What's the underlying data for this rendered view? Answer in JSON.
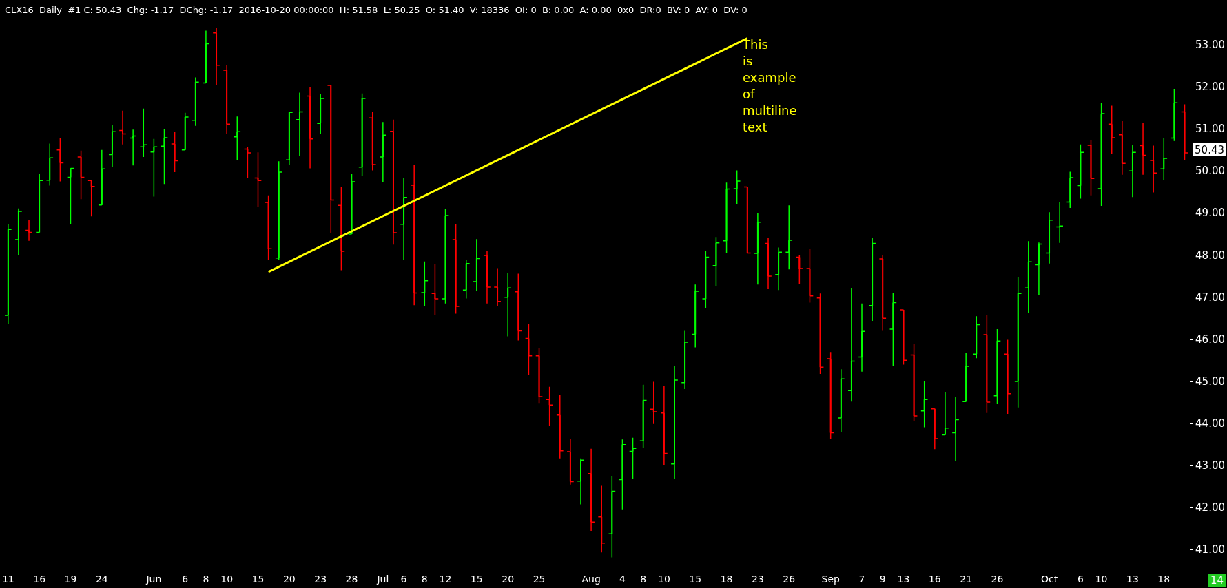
{
  "chart_data": {
    "type": "candlestick",
    "title": "CLX16  Daily  #1 C: 50.43  Chg: -1.17  DChg: -1.17  2016-10-20 00:00:00  H: 51.58  L: 50.25  O: 51.40  V: 18336  OI: 0  B: 0.00  A: 0.00  0x0  DR:0  BV: 0  AV: 0  DV: 0",
    "categories": [
      "11",
      null,
      null,
      "16",
      null,
      null,
      "19",
      null,
      null,
      "24",
      null,
      null,
      null,
      null,
      "Jun",
      null,
      null,
      "6",
      null,
      "8",
      null,
      "10",
      null,
      null,
      "15",
      null,
      null,
      "20",
      null,
      null,
      "23",
      null,
      null,
      "28",
      null,
      null,
      "Jul",
      null,
      "6",
      null,
      "8",
      null,
      "12",
      null,
      null,
      "15",
      null,
      null,
      "20",
      null,
      null,
      "25",
      null,
      null,
      null,
      null,
      "Aug",
      null,
      null,
      "4",
      null,
      "8",
      null,
      "10",
      null,
      null,
      "15",
      null,
      null,
      "18",
      null,
      null,
      "23",
      null,
      null,
      "26",
      null,
      null,
      null,
      "Sep",
      null,
      null,
      "7",
      null,
      "9",
      null,
      "13",
      null,
      null,
      "16",
      null,
      null,
      "21",
      null,
      null,
      "26",
      null,
      null,
      null,
      null,
      "Oct",
      null,
      null,
      "6",
      null,
      "10",
      null,
      null,
      "13",
      null,
      null,
      "18",
      null,
      null
    ],
    "ohlc": [
      [
        46.57,
        48.73,
        46.36,
        48.61
      ],
      [
        48.37,
        49.11,
        48.01,
        49.04
      ],
      [
        48.59,
        48.83,
        48.34,
        48.54
      ],
      [
        48.54,
        49.94,
        48.54,
        49.77
      ],
      [
        49.78,
        50.65,
        49.65,
        50.31
      ],
      [
        50.5,
        50.79,
        49.75,
        50.19
      ],
      [
        49.85,
        50.06,
        48.73,
        50.06
      ],
      [
        50.33,
        50.48,
        49.33,
        49.85
      ],
      [
        49.77,
        49.77,
        48.92,
        49.63
      ],
      [
        49.19,
        50.5,
        49.19,
        50.05
      ],
      [
        50.39,
        51.09,
        50.09,
        50.93
      ],
      [
        50.96,
        51.43,
        50.63,
        50.88
      ],
      [
        50.78,
        50.98,
        50.13,
        50.83
      ],
      [
        50.57,
        51.48,
        50.33,
        50.62
      ],
      [
        50.45,
        50.76,
        49.39,
        50.57
      ],
      [
        50.59,
        51.0,
        49.69,
        50.79
      ],
      [
        50.64,
        50.93,
        49.97,
        50.24
      ],
      [
        50.5,
        51.38,
        50.5,
        51.28
      ],
      [
        51.2,
        52.22,
        51.07,
        52.11
      ],
      [
        52.09,
        53.33,
        52.09,
        53.02
      ],
      [
        53.28,
        53.4,
        52.05,
        52.51
      ],
      [
        52.39,
        52.51,
        50.87,
        51.11
      ],
      [
        50.81,
        51.29,
        50.25,
        50.93
      ],
      [
        50.52,
        50.56,
        49.83,
        50.43
      ],
      [
        49.83,
        50.44,
        49.14,
        49.77
      ],
      [
        49.25,
        49.42,
        47.89,
        48.15
      ],
      [
        47.93,
        50.23,
        47.89,
        49.97
      ],
      [
        50.26,
        51.41,
        50.15,
        51.39
      ],
      [
        51.22,
        51.86,
        50.36,
        51.4
      ],
      [
        51.78,
        51.99,
        50.06,
        50.76
      ],
      [
        51.13,
        51.83,
        50.88,
        51.72
      ],
      [
        52.03,
        52.03,
        48.53,
        49.31
      ],
      [
        49.18,
        49.62,
        47.64,
        48.09
      ],
      [
        48.5,
        49.94,
        48.5,
        49.74
      ],
      [
        50.09,
        51.84,
        49.88,
        51.72
      ],
      [
        51.26,
        51.41,
        50.01,
        50.15
      ],
      [
        50.33,
        51.16,
        49.74,
        50.85
      ],
      [
        50.94,
        51.22,
        48.25,
        48.53
      ],
      [
        48.73,
        49.83,
        47.88,
        49.37
      ],
      [
        49.66,
        50.15,
        46.81,
        47.1
      ],
      [
        47.11,
        47.85,
        46.78,
        47.39
      ],
      [
        47.09,
        47.78,
        46.58,
        46.96
      ],
      [
        46.96,
        49.09,
        46.85,
        48.94
      ],
      [
        48.37,
        48.73,
        46.61,
        46.78
      ],
      [
        47.17,
        47.88,
        46.97,
        47.8
      ],
      [
        47.37,
        48.38,
        47.14,
        47.92
      ],
      [
        47.99,
        48.1,
        46.85,
        47.24
      ],
      [
        47.24,
        47.69,
        46.78,
        46.9
      ],
      [
        47.0,
        47.57,
        46.07,
        47.22
      ],
      [
        47.13,
        47.56,
        45.97,
        46.2
      ],
      [
        46.02,
        46.36,
        45.16,
        45.61
      ],
      [
        45.61,
        45.8,
        44.47,
        44.64
      ],
      [
        44.57,
        44.87,
        43.95,
        44.44
      ],
      [
        44.2,
        44.69,
        43.17,
        43.35
      ],
      [
        43.33,
        43.63,
        42.55,
        42.62
      ],
      [
        42.63,
        43.17,
        42.08,
        43.13
      ],
      [
        42.81,
        43.4,
        41.45,
        41.66
      ],
      [
        41.78,
        42.52,
        40.94,
        41.16
      ],
      [
        41.38,
        42.76,
        40.82,
        42.39
      ],
      [
        42.67,
        43.62,
        41.96,
        43.5
      ],
      [
        43.34,
        43.66,
        42.68,
        43.41
      ],
      [
        43.59,
        44.92,
        43.42,
        44.55
      ],
      [
        44.34,
        44.99,
        43.99,
        44.28
      ],
      [
        44.25,
        44.89,
        43.02,
        43.29
      ],
      [
        43.04,
        45.37,
        42.68,
        45.03
      ],
      [
        44.97,
        46.2,
        44.82,
        45.93
      ],
      [
        46.12,
        47.3,
        45.81,
        47.14
      ],
      [
        46.96,
        48.09,
        46.74,
        47.95
      ],
      [
        47.75,
        48.43,
        47.27,
        48.29
      ],
      [
        48.34,
        49.72,
        48.04,
        49.57
      ],
      [
        49.58,
        50.01,
        49.21,
        49.76
      ],
      [
        49.62,
        49.62,
        48.05,
        48.05
      ],
      [
        48.04,
        49.0,
        47.3,
        48.78
      ],
      [
        48.28,
        48.41,
        47.19,
        47.5
      ],
      [
        47.54,
        48.18,
        47.17,
        48.07
      ],
      [
        48.07,
        49.18,
        47.66,
        48.35
      ],
      [
        47.95,
        47.99,
        47.32,
        47.68
      ],
      [
        47.68,
        48.14,
        46.87,
        47.03
      ],
      [
        46.98,
        47.09,
        45.18,
        45.34
      ],
      [
        45.54,
        45.7,
        43.63,
        43.78
      ],
      [
        44.13,
        45.29,
        43.79,
        45.06
      ],
      [
        44.78,
        47.22,
        44.52,
        45.48
      ],
      [
        45.58,
        46.85,
        45.23,
        46.19
      ],
      [
        46.8,
        48.4,
        46.44,
        48.28
      ],
      [
        47.91,
        48.01,
        46.2,
        46.5
      ],
      [
        46.24,
        47.1,
        45.36,
        46.87
      ],
      [
        46.7,
        46.7,
        45.4,
        45.5
      ],
      [
        45.63,
        45.89,
        44.05,
        44.18
      ],
      [
        44.3,
        45.0,
        43.91,
        44.57
      ],
      [
        44.35,
        44.35,
        43.39,
        43.64
      ],
      [
        43.73,
        44.74,
        43.73,
        43.89
      ],
      [
        43.78,
        44.63,
        43.1,
        44.09
      ],
      [
        44.52,
        45.68,
        44.52,
        45.36
      ],
      [
        45.65,
        46.55,
        45.55,
        46.35
      ],
      [
        46.11,
        46.58,
        44.25,
        44.51
      ],
      [
        44.66,
        46.24,
        44.46,
        45.96
      ],
      [
        45.65,
        45.99,
        44.23,
        44.71
      ],
      [
        45.0,
        47.48,
        44.38,
        47.09
      ],
      [
        47.22,
        48.33,
        46.62,
        47.84
      ],
      [
        47.77,
        48.3,
        47.06,
        48.26
      ],
      [
        48.05,
        49.02,
        47.8,
        48.83
      ],
      [
        48.67,
        49.26,
        48.29,
        48.69
      ],
      [
        49.26,
        49.98,
        49.12,
        49.84
      ],
      [
        49.65,
        50.63,
        49.34,
        50.44
      ],
      [
        50.61,
        50.74,
        49.42,
        49.82
      ],
      [
        49.58,
        51.62,
        49.17,
        51.36
      ],
      [
        51.11,
        51.55,
        50.41,
        50.79
      ],
      [
        50.86,
        51.18,
        49.91,
        50.18
      ],
      [
        50.0,
        50.61,
        49.38,
        50.44
      ],
      [
        50.6,
        51.15,
        49.91,
        50.37
      ],
      [
        50.25,
        50.6,
        49.49,
        49.95
      ],
      [
        50.05,
        50.78,
        49.78,
        50.3
      ],
      [
        50.78,
        51.95,
        50.71,
        51.62
      ],
      [
        51.4,
        51.58,
        50.25,
        50.43
      ]
    ],
    "colors": [
      "#00ff00",
      "#00ff00",
      "#ff0000",
      "#00ff00",
      "#00ff00",
      "#ff0000",
      "#00ff00",
      "#ff0000",
      "#ff0000",
      "#00ff00",
      "#00ff00",
      "#ff0000",
      "#00ff00",
      "#00ff00",
      "#00ff00",
      "#00ff00",
      "#ff0000",
      "#00ff00",
      "#00ff00",
      "#00ff00",
      "#ff0000",
      "#ff0000",
      "#00ff00",
      "#ff0000",
      "#ff0000",
      "#ff0000",
      "#00ff00",
      "#00ff00",
      "#00ff00",
      "#ff0000",
      "#00ff00",
      "#ff0000",
      "#ff0000",
      "#00ff00",
      "#00ff00",
      "#ff0000",
      "#00ff00",
      "#ff0000",
      "#00ff00",
      "#ff0000",
      "#00ff00",
      "#ff0000",
      "#00ff00",
      "#ff0000",
      "#00ff00",
      "#00ff00",
      "#ff0000",
      "#ff0000",
      "#00ff00",
      "#ff0000",
      "#ff0000",
      "#ff0000",
      "#ff0000",
      "#ff0000",
      "#ff0000",
      "#00ff00",
      "#ff0000",
      "#ff0000",
      "#00ff00",
      "#00ff00",
      "#00ff00",
      "#00ff00",
      "#ff0000",
      "#ff0000",
      "#00ff00",
      "#00ff00",
      "#00ff00",
      "#00ff00",
      "#00ff00",
      "#00ff00",
      "#00ff00",
      "#ff0000",
      "#00ff00",
      "#ff0000",
      "#00ff00",
      "#00ff00",
      "#ff0000",
      "#ff0000",
      "#ff0000",
      "#ff0000",
      "#00ff00",
      "#00ff00",
      "#00ff00",
      "#00ff00",
      "#ff0000",
      "#00ff00",
      "#ff0000",
      "#ff0000",
      "#00ff00",
      "#ff0000",
      "#00ff00",
      "#00ff00",
      "#00ff00",
      "#00ff00",
      "#ff0000",
      "#00ff00",
      "#ff0000",
      "#00ff00",
      "#00ff00",
      "#00ff00",
      "#00ff00",
      "#00ff00",
      "#00ff00",
      "#00ff00",
      "#ff0000",
      "#00ff00",
      "#ff0000",
      "#ff0000",
      "#00ff00",
      "#ff0000",
      "#ff0000",
      "#00ff00",
      "#00ff00",
      "#ff0000"
    ],
    "series": [
      {
        "type": "line",
        "color": "#ffff00",
        "values": [
          null,
          null,
          null,
          null,
          null,
          null,
          null,
          null,
          null,
          null,
          null,
          null,
          null,
          null,
          null,
          null,
          null,
          null,
          null,
          null,
          null,
          null,
          null,
          null,
          null,
          47.6,
          null,
          null,
          null,
          null,
          null,
          null,
          null,
          null,
          null,
          null,
          null,
          null,
          null,
          null,
          null,
          null,
          null,
          null,
          null,
          null,
          null,
          null,
          null,
          null,
          null,
          null,
          null,
          null,
          null,
          null,
          null,
          null,
          null,
          null,
          null,
          null,
          null,
          null,
          null,
          null,
          null,
          null,
          null,
          null,
          null,
          53.15,
          null,
          null,
          null,
          null,
          null,
          null,
          null,
          null,
          null,
          null,
          null,
          null,
          null,
          null,
          null,
          null,
          null,
          null,
          null,
          null,
          null,
          null,
          null,
          null,
          null,
          null,
          null,
          null,
          null,
          null,
          null,
          null,
          null,
          null,
          null,
          null,
          null,
          null,
          null,
          null,
          null,
          null
        ]
      }
    ],
    "ylim": [
      40.55,
      53.7
    ],
    "yticks": [
      {
        "value": 41,
        "label": "41.00"
      },
      {
        "value": 42,
        "label": "42.00"
      },
      {
        "value": 43,
        "label": "43.00"
      },
      {
        "value": 44,
        "label": "44.00"
      },
      {
        "value": 45,
        "label": "45.00"
      },
      {
        "value": 46,
        "label": "46.00"
      },
      {
        "value": 47,
        "label": "47.00"
      },
      {
        "value": 48,
        "label": "48.00"
      },
      {
        "value": 49,
        "label": "49.00"
      },
      {
        "value": 50,
        "label": "50.00"
      },
      {
        "value": 51,
        "label": "51.00"
      },
      {
        "value": 52,
        "label": "52.00"
      },
      {
        "value": 53,
        "label": "53.00"
      }
    ],
    "annotations": [
      "This\nis\nexample\nof\nmultiline\ntext",
      "50.43",
      "14"
    ]
  }
}
